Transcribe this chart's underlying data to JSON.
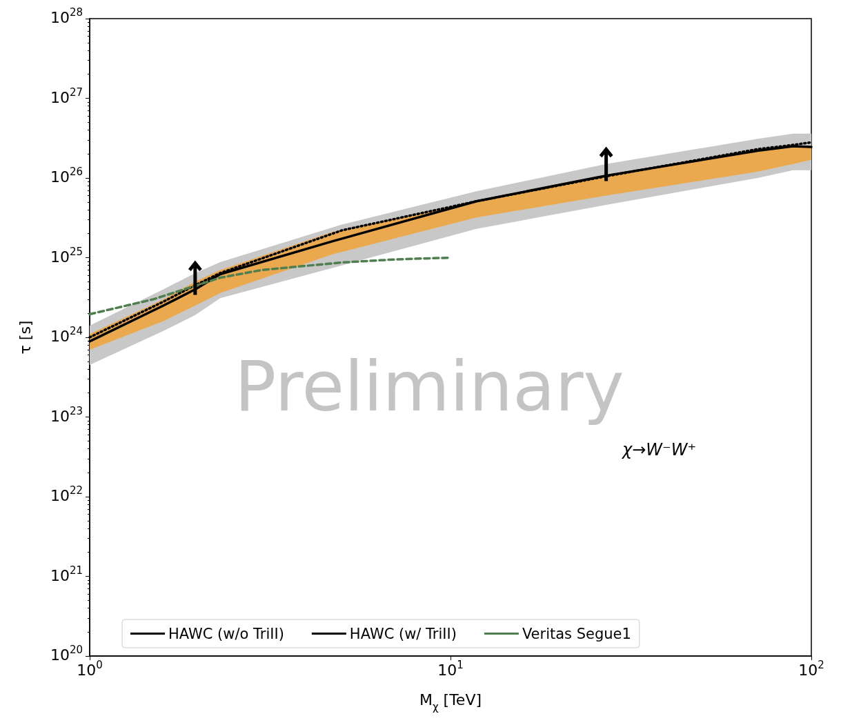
{
  "chart_data": {
    "type": "line",
    "xlabel": "M$_{χ}$ [TeV]",
    "ylabel": "τ [s]",
    "log": "xy",
    "grid": false,
    "legend": "bottom",
    "marker": "none",
    "xlim": [
      1,
      100
    ],
    "xticks": [
      {
        "value": 1,
        "label": "10$^{0}$"
      },
      {
        "value": 10,
        "label": "10$^{1}$"
      },
      {
        "value": 100,
        "label": "10$^{2}$"
      }
    ],
    "ylim": [
      1e+20,
      1e+28
    ],
    "yticks": [
      {
        "value": 1e+20,
        "label": "10$^{20}$"
      },
      {
        "value": 1e+21,
        "label": "10$^{21}$"
      },
      {
        "value": 1e+22,
        "label": "10$^{22}$"
      },
      {
        "value": 1e+23,
        "label": "10$^{23}$"
      },
      {
        "value": 1e+24,
        "label": "10$^{24}$"
      },
      {
        "value": 1e+25,
        "label": "10$^{25}$"
      },
      {
        "value": 1e+26,
        "label": "10$^{26}$"
      },
      {
        "value": 1e+27,
        "label": "10$^{27}$"
      },
      {
        "value": 1e+28,
        "label": "10$^{28}$"
      }
    ],
    "annotations": [
      "χ→W⁻W⁺",
      "Preliminary"
    ],
    "series": [
      {
        "name": "HAWC (w/o TriII)",
        "color": "#000000",
        "line_style": "solid",
        "x": [
          1,
          1.6,
          1.96,
          2.3,
          4.7,
          11.8,
          27,
          71,
          89,
          100
        ],
        "values": [
          8.9e+23,
          2.5e+24,
          4e+24,
          6.2e+24,
          1.6e+25,
          5.1e+25,
          1.07e+26,
          2.2e+26,
          2.5e+26,
          2.45e+26
        ],
        "lower": [
          7e+23,
          1.6e+24,
          2.5e+24,
          3.6e+24,
          1.1e+25,
          3.2e+25,
          6e+25,
          1.2e+26,
          1.5e+26,
          1.7e+26
        ],
        "upper": [
          1.1e+24,
          3e+24,
          5e+24,
          7e+24,
          2.1e+25,
          5.1e+25,
          1.1e+26,
          2.2e+26,
          2.5e+26,
          2.5e+26
        ]
      },
      {
        "name": "HAWC (w/ TriII)",
        "color": "#000000",
        "line_style": "dotted",
        "x": [
          1,
          1.6,
          1.96,
          2.3,
          5,
          11.8,
          27,
          71,
          89,
          100
        ],
        "values": [
          1e+24,
          2.8e+24,
          4.5e+24,
          6.4e+24,
          2.2e+25,
          5.1e+25,
          1.05e+26,
          2.3e+26,
          2.6e+26,
          2.8e+26
        ],
        "lower": [
          4.5e+23,
          1.2e+24,
          1.9e+24,
          3.1e+24,
          8e+24,
          2.3e+25,
          4.6e+25,
          1e+26,
          1.25e+26,
          1.25e+26
        ],
        "upper": [
          1.4e+24,
          4e+24,
          6.4e+24,
          8.8e+24,
          2.6e+25,
          6.8e+25,
          1.5e+26,
          3.1e+26,
          3.6e+26,
          3.6e+26
        ]
      },
      {
        "name": "Veritas Segue1",
        "color": "#4f7f4f",
        "line_style": "dashed",
        "x": [
          1,
          1.5,
          2.3,
          3,
          5,
          7,
          10
        ],
        "values": [
          1.95e+24,
          3e+24,
          5.6e+24,
          7e+24,
          8.7e+24,
          9.5e+24,
          1e+25
        ]
      }
    ]
  }
}
